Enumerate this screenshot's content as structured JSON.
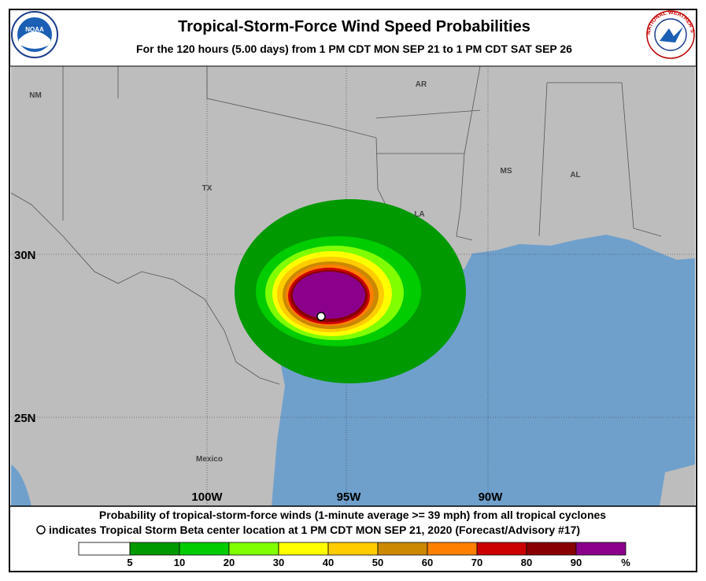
{
  "header": {
    "title": "Tropical-Storm-Force Wind Speed Probabilities",
    "subtitle": "For the 120 hours (5.00 days) from 1 PM CDT MON SEP 21 to 1 PM CDT SAT SEP 26",
    "left_logo": "NOAA",
    "right_logo": "NATIONAL WEATHER SERVICE"
  },
  "map": {
    "region_labels": [
      "NM",
      "AR",
      "TX",
      "MS",
      "AL",
      "LA",
      "Mexico"
    ],
    "lat_labels": [
      "30N",
      "25N"
    ],
    "lon_labels": [
      "100W",
      "95W",
      "90W"
    ]
  },
  "footer": {
    "line1": "Probability of tropical-storm-force winds (1-minute average >= 39 mph) from all tropical cyclones",
    "line2": "indicates Tropical Storm Beta center location at 1 PM CDT MON SEP 21, 2020 (Forecast/Advisory #17)"
  },
  "legend": {
    "ticks": [
      5,
      10,
      20,
      30,
      40,
      50,
      60,
      70,
      80,
      90
    ],
    "unit": "%",
    "colors": [
      "#ffffff",
      "#009900",
      "#00cc00",
      "#80ff00",
      "#ffff00",
      "#ffcc00",
      "#cc8800",
      "#ff8000",
      "#cc0000",
      "#880000",
      "#8b008b"
    ]
  }
}
